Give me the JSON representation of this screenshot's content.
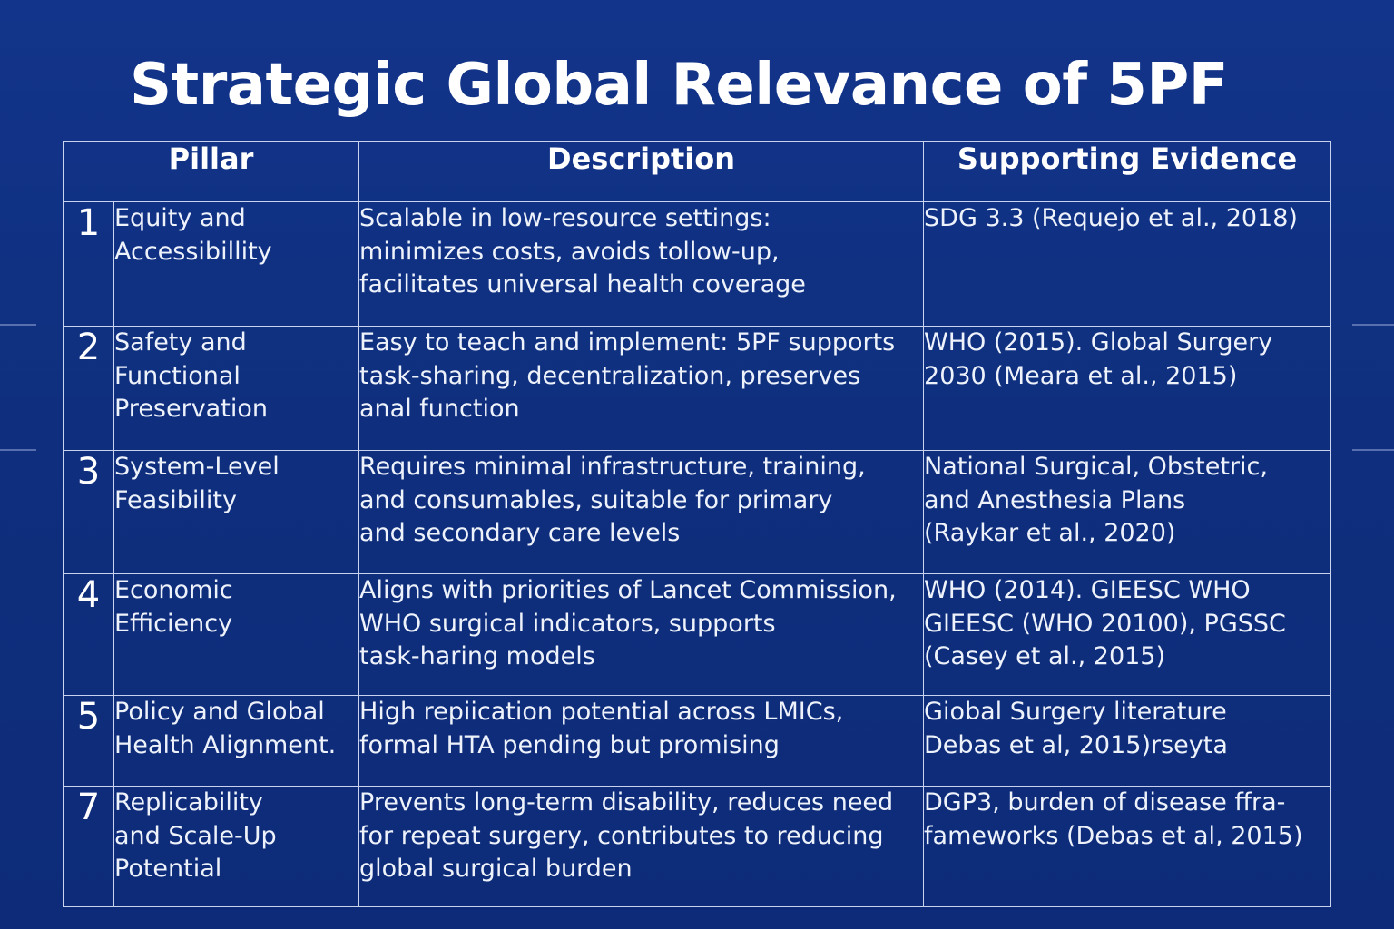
{
  "title": "Strategic Global Relevance of 5PF",
  "table": {
    "headers": {
      "pillar": "Pillar",
      "description": "Description",
      "evidence": "Supporting Evidence"
    },
    "rows": [
      {
        "number": "1",
        "pillar": "Equity and\nAccessibillity",
        "description": "Scalable in low-resource settings:\nminimizes costs, avoids tollow-up,\nfacilitates universal health coverage",
        "evidence": "SDG 3.3 (Requejo et al., 2018)"
      },
      {
        "number": "2",
        "pillar": "Safety and\nFunctional\nPreservation",
        "description": "Easy to teach and implement: 5PF supports\ntask-sharing, decentralization, preserves\nanal function",
        "evidence": "WHO (2015). Global Surgery\n2030 (Meara et al., 2015)"
      },
      {
        "number": "3",
        "pillar": "System-Level\nFeasibility",
        "description": "Requires minimal infrastructure, training,\nand consumables, suitable for primary\nand secondary care levels",
        "evidence": "National Surgical, Obstetric,\nand Anesthesia Plans\n(Raykar et al., 2020)"
      },
      {
        "number": "4",
        "pillar": "Economic\nEfficiency",
        "description": "Aligns with priorities of Lancet Commission,\nWHO surgical indicators, supports\ntask-haring models",
        "evidence": "WHO (2014). GIEESC WHO\nGIEESC (WHO 20100), PGSSC\n(Casey et al., 2015)"
      },
      {
        "number": "5",
        "pillar": "Policy and Global\nHealth Alignment.",
        "description": "High repiication potential across LMICs,\nformal HTA pending but promising",
        "evidence": "Giobal Surgery literature\nDebas et al, 2015)rseyta"
      },
      {
        "number": "7",
        "pillar": "Replicability\nand Scale-Up\nPotential",
        "description": "Prevents long-term disability, reduces need\nfor repeat surgery, contributes to reducing\nglobal surgical burden",
        "evidence": "DGP3, burden of disease ffra-\nfameworks (Debas et al, 2015)"
      }
    ]
  }
}
